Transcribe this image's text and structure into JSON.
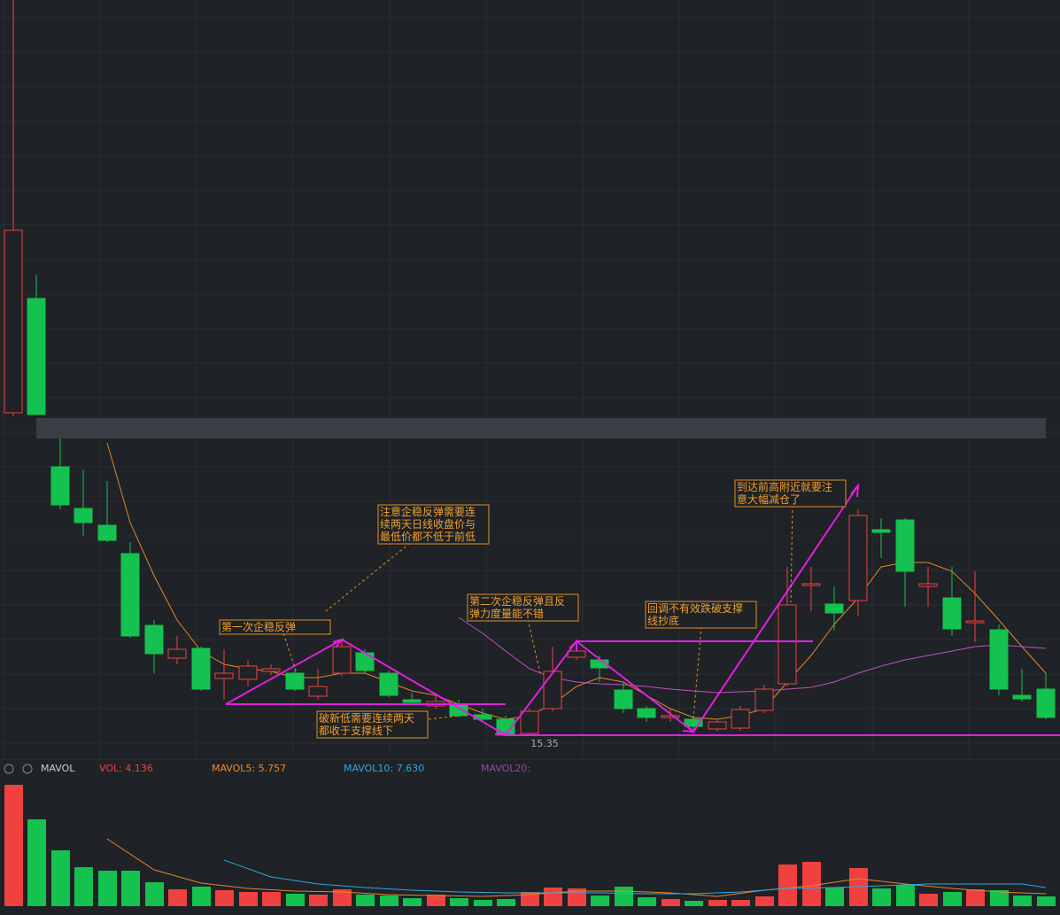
{
  "annotations": [
    {
      "lines": [
        "第一次企稳反弹"
      ]
    },
    {
      "lines": [
        "注意企稳反弹需要连",
        "续两天日线收盘价与",
        "最低价都不低于前低"
      ]
    },
    {
      "lines": [
        "第二次企稳反弹且反",
        "弹力度量能不错"
      ]
    },
    {
      "lines": [
        "破新低需要连续两天",
        "都收于支撑线下"
      ]
    },
    {
      "lines": [
        "回调不有效跌破支撑",
        "线抄底"
      ]
    },
    {
      "lines": [
        "到达前高附近就要注",
        "意大幅减仓了"
      ]
    }
  ],
  "low_marker": "15.35",
  "volume_panel": {
    "name": "MAVOL",
    "vol": "VOL: 4.136",
    "mavol5": "MAVOL5: 5.757",
    "mavol10": "MAVOL10: 7.630",
    "mavol20": "MAVOL20:"
  }
}
